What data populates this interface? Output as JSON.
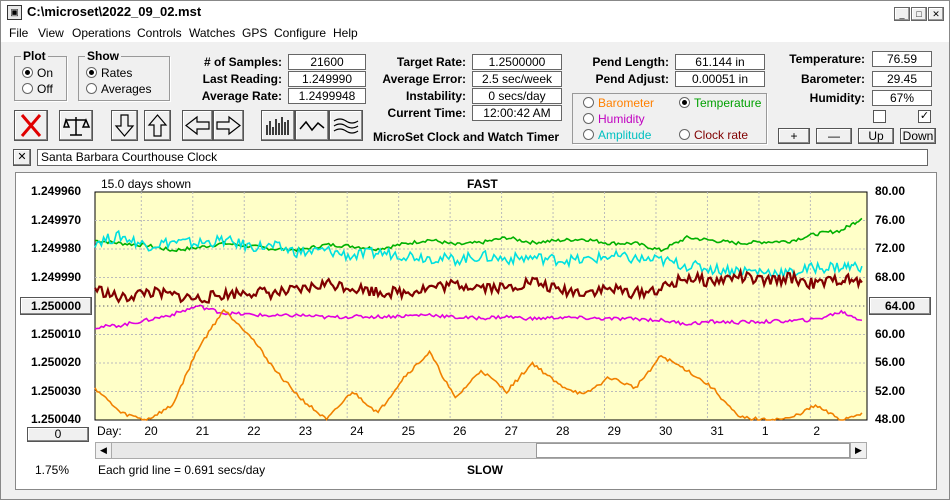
{
  "window": {
    "title": "C:\\microset\\2022_09_02.mst",
    "app_icon": "microset-app-icon"
  },
  "menu": [
    "File",
    "View",
    "Operations",
    "Controls",
    "Watches",
    "GPS",
    "Configure",
    "Help"
  ],
  "plot_group": {
    "title": "Plot",
    "options": [
      "On",
      "Off"
    ],
    "selected": "On"
  },
  "show_group": {
    "title": "Show",
    "options": [
      "Rates",
      "Averages"
    ],
    "selected": "Rates"
  },
  "stats": {
    "samples_label": "# of Samples:",
    "samples": "21600",
    "last_reading_label": "Last Reading:",
    "last_reading": "1.249990",
    "average_rate_label": "Average Rate:",
    "average_rate": "1.2499948",
    "target_rate_label": "Target Rate:",
    "target_rate": "1.2500000",
    "average_error_label": "Average Error:",
    "average_error": "2.5 sec/week",
    "instability_label": "Instability:",
    "instability": "0 secs/day",
    "current_time_label": "Current Time:",
    "current_time": "12:00:42 AM",
    "pend_length_label": "Pend Length:",
    "pend_length": "61.144 in",
    "pend_adjust_label": "Pend Adjust:",
    "pend_adjust": "0.00051 in"
  },
  "env": {
    "temperature_label": "Temperature:",
    "temperature": "76.59",
    "barometer_label": "Barometer:",
    "barometer": "29.45",
    "humidity_label": "Humidity:",
    "humidity": "67%"
  },
  "app_subtitle": "MicroSet Clock and Watch Timer",
  "aux_options": {
    "items": [
      {
        "label": "Barometer",
        "color": "#ff8000",
        "selected": false
      },
      {
        "label": "Temperature",
        "color": "#00a000",
        "selected": true
      },
      {
        "label": "Humidity",
        "color": "#c000c0",
        "selected": false
      },
      {
        "label": "Amplitude",
        "color": "#00c0c0",
        "selected": false
      },
      {
        "label": "Clock rate",
        "color": "#800000",
        "selected": false
      }
    ]
  },
  "aux_buttons": {
    "plus": "+",
    "minus": "—",
    "up": "Up",
    "down": "Down"
  },
  "toolbar_icons": [
    "clear-x-icon",
    "balance-scale-icon",
    "arrow-down-icon",
    "arrow-up-icon",
    "arrow-left-icon",
    "arrow-right-icon",
    "bar-histogram-icon",
    "wave-line-icon",
    "multi-wave-icon"
  ],
  "clock_name": "Santa Barbara Courthouse Clock",
  "close_label": "✕",
  "graph": {
    "days_shown": "15.0 days shown",
    "fast_label": "FAST",
    "slow_label": "SLOW",
    "grid_note": "Each grid line = 0.691 secs/day",
    "pct": "1.75%",
    "day_label": "Day:",
    "left_button": "1.250000",
    "left_bottom_button": "0",
    "right_button": "64.00",
    "background": "#ffffc8"
  },
  "chart_data": {
    "type": "line",
    "x_label": "Day:",
    "x_ticks": [
      "20",
      "21",
      "22",
      "23",
      "24",
      "25",
      "26",
      "27",
      "28",
      "29",
      "30",
      "31",
      "1",
      "2"
    ],
    "y_left_ticks": [
      "1.249960",
      "1.249970",
      "1.249980",
      "1.249990",
      "1.250000",
      "1.250010",
      "1.250020",
      "1.250030",
      "1.250040"
    ],
    "y_right_ticks": [
      "80.00",
      "76.00",
      "72.00",
      "68.00",
      "64.00",
      "60.00",
      "56.00",
      "52.00",
      "48.00"
    ],
    "y_left_range": [
      1.24996,
      1.25004
    ],
    "y_right_range": [
      48,
      80
    ],
    "x_range": [
      19.1,
      34.1
    ],
    "grid": true,
    "series": [
      {
        "color": "#00b000",
        "axis": "right",
        "x": [
          19.1,
          19.6,
          20.1,
          20.6,
          21.1,
          21.6,
          22.1,
          22.6,
          23.1,
          23.6,
          24.1,
          24.6,
          25.1,
          25.6,
          26.1,
          26.6,
          27.1,
          27.6,
          28.1,
          28.6,
          29.1,
          29.6,
          30.1,
          30.6,
          31.1,
          31.6,
          32.1,
          32.6,
          33.1,
          33.6,
          34.0
        ],
        "values": [
          73.2,
          72.8,
          72.5,
          71.8,
          72.2,
          72.8,
          72.4,
          72.0,
          71.9,
          72.6,
          72.4,
          72.0,
          72.7,
          73.3,
          72.6,
          72.9,
          73.6,
          72.9,
          73.2,
          73.4,
          72.8,
          72.8,
          71.8,
          73.6,
          73.2,
          72.8,
          73.0,
          73.1,
          74.1,
          74.6,
          76.3
        ]
      },
      {
        "color": "#00e0e0",
        "axis": "right",
        "x": [
          19.1,
          19.6,
          20.1,
          20.6,
          21.1,
          21.6,
          22.1,
          22.6,
          23.1,
          23.6,
          24.1,
          24.6,
          25.1,
          25.6,
          26.1,
          26.6,
          27.1,
          27.6,
          28.1,
          28.6,
          29.1,
          29.6,
          30.1,
          30.6,
          31.1,
          31.6,
          32.1,
          32.6,
          33.1,
          33.6,
          34.0
        ],
        "values": [
          73.0,
          73.8,
          72.5,
          73.0,
          72.8,
          73.2,
          72.4,
          72.3,
          71.5,
          71.8,
          71.0,
          71.5,
          71.2,
          70.8,
          70.5,
          71.0,
          70.6,
          70.8,
          70.5,
          70.4,
          71.0,
          70.6,
          70.4,
          69.7,
          69.2,
          69.0,
          68.8,
          68.6,
          69.4,
          69.5,
          69.6
        ]
      },
      {
        "color": "#800000",
        "axis": "right",
        "x": [
          19.1,
          19.6,
          20.1,
          20.6,
          21.1,
          21.6,
          22.1,
          22.6,
          23.1,
          23.6,
          24.1,
          24.6,
          25.1,
          25.6,
          26.1,
          26.6,
          27.1,
          27.6,
          28.1,
          28.6,
          29.1,
          29.6,
          30.1,
          30.6,
          31.1,
          31.6,
          32.1,
          32.6,
          33.1,
          33.6,
          34.0
        ],
        "values": [
          66.5,
          65.0,
          66.0,
          65.5,
          65.0,
          65.6,
          66.0,
          65.8,
          66.2,
          67.2,
          66.6,
          66.0,
          65.9,
          66.6,
          67.0,
          66.8,
          66.5,
          67.5,
          66.2,
          66.0,
          66.4,
          65.8,
          66.4,
          68.0,
          67.4,
          68.2,
          67.4,
          68.0,
          67.0,
          67.8,
          67.3
        ]
      },
      {
        "color": "#e000e0",
        "axis": "right",
        "x": [
          19.1,
          19.6,
          20.1,
          20.6,
          21.1,
          21.6,
          22.1,
          22.6,
          23.1,
          23.6,
          24.1,
          24.6,
          25.1,
          25.6,
          26.1,
          26.6,
          27.1,
          27.6,
          28.1,
          28.6,
          29.1,
          29.6,
          30.1,
          30.6,
          31.1,
          31.6,
          32.1,
          32.6,
          33.1,
          33.6,
          34.0
        ],
        "values": [
          61.0,
          61.3,
          62.0,
          62.8,
          64.0,
          63.0,
          62.8,
          62.6,
          62.7,
          62.4,
          62.5,
          62.5,
          62.6,
          62.8,
          62.4,
          62.3,
          62.5,
          62.2,
          62.4,
          62.3,
          62.2,
          62.2,
          62.0,
          61.5,
          61.8,
          61.7,
          61.8,
          61.9,
          62.1,
          63.2,
          62.0
        ]
      },
      {
        "color": "#f08000",
        "axis": "right",
        "x": [
          19.1,
          19.6,
          20.1,
          20.6,
          21.1,
          21.6,
          22.1,
          22.6,
          23.1,
          23.6,
          24.1,
          24.6,
          25.1,
          25.6,
          26.1,
          26.6,
          27.1,
          27.6,
          28.1,
          28.6,
          29.1,
          29.6,
          30.1,
          30.6,
          31.1,
          31.6,
          32.1,
          32.6,
          33.1,
          33.6,
          34.0
        ],
        "values": [
          52.5,
          49.0,
          48.0,
          50.0,
          58.0,
          63.5,
          60.0,
          55.0,
          51.0,
          48.0,
          52.0,
          49.0,
          54.0,
          57.5,
          51.0,
          55.0,
          52.0,
          56.0,
          53.0,
          51.5,
          54.0,
          52.5,
          57.0,
          55.0,
          52.5,
          48.4,
          48.0,
          48.2,
          50.0,
          48.0,
          49.0
        ]
      }
    ]
  }
}
